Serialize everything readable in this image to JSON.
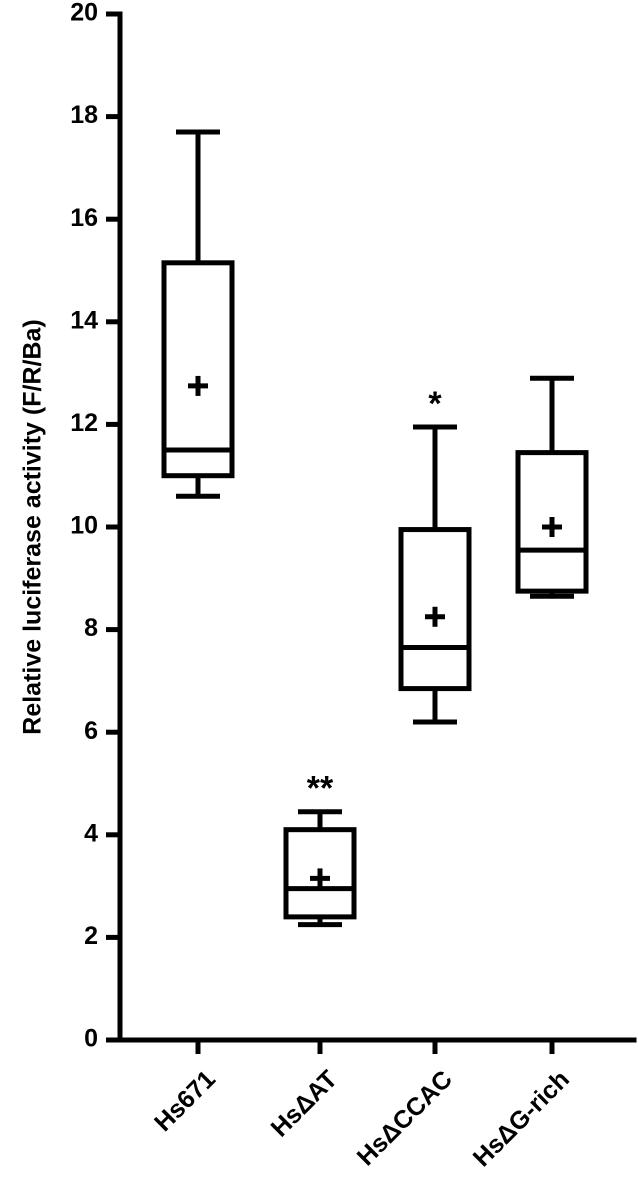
{
  "chart_data": {
    "type": "box",
    "ylabel": "Relative luciferase activity (F/R/Ba)",
    "ylim": [
      0,
      20
    ],
    "yticks": [
      0,
      2,
      4,
      6,
      8,
      10,
      12,
      14,
      16,
      18,
      20
    ],
    "grid": false,
    "categories": [
      "Hs671",
      "HsΔAT",
      "HsΔCCAC",
      "HsΔG-rich"
    ],
    "boxes": [
      {
        "min": 10.6,
        "q1": 11.0,
        "median": 11.5,
        "q3": 15.15,
        "max": 17.7,
        "mean": 12.75,
        "significance": ""
      },
      {
        "min": 2.25,
        "q1": 2.4,
        "median": 2.95,
        "q3": 4.1,
        "max": 4.45,
        "mean": 3.15,
        "significance": "**"
      },
      {
        "min": 6.2,
        "q1": 6.85,
        "median": 7.65,
        "q3": 9.95,
        "max": 11.95,
        "mean": 8.25,
        "significance": "*"
      },
      {
        "min": 8.65,
        "q1": 8.75,
        "median": 9.55,
        "q3": 11.45,
        "max": 12.9,
        "mean": 10.0,
        "significance": ""
      }
    ]
  }
}
